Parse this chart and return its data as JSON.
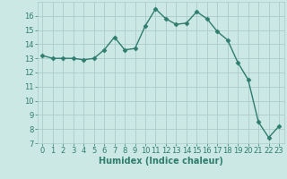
{
  "x": [
    0,
    1,
    2,
    3,
    4,
    5,
    6,
    7,
    8,
    9,
    10,
    11,
    12,
    13,
    14,
    15,
    16,
    17,
    18,
    19,
    20,
    21,
    22,
    23
  ],
  "y": [
    13.2,
    13.0,
    13.0,
    13.0,
    12.9,
    13.0,
    13.6,
    14.5,
    13.6,
    13.7,
    15.3,
    16.5,
    15.8,
    15.4,
    15.5,
    16.3,
    15.8,
    14.9,
    14.3,
    12.7,
    11.5,
    8.5,
    7.4,
    8.2
  ],
  "line_color": "#2e7d6e",
  "marker": "D",
  "marker_size": 2.5,
  "bg_color": "#cce8e4",
  "grid_color": "#aacccc",
  "xlabel": "Humidex (Indice chaleur)",
  "ylim": [
    7,
    17
  ],
  "xlim": [
    -0.5,
    23.5
  ],
  "yticks": [
    7,
    8,
    9,
    10,
    11,
    12,
    13,
    14,
    15,
    16
  ],
  "xticks": [
    0,
    1,
    2,
    3,
    4,
    5,
    6,
    7,
    8,
    9,
    10,
    11,
    12,
    13,
    14,
    15,
    16,
    17,
    18,
    19,
    20,
    21,
    22,
    23
  ],
  "xlabel_fontsize": 7,
  "tick_fontsize": 6,
  "line_width": 1.0
}
